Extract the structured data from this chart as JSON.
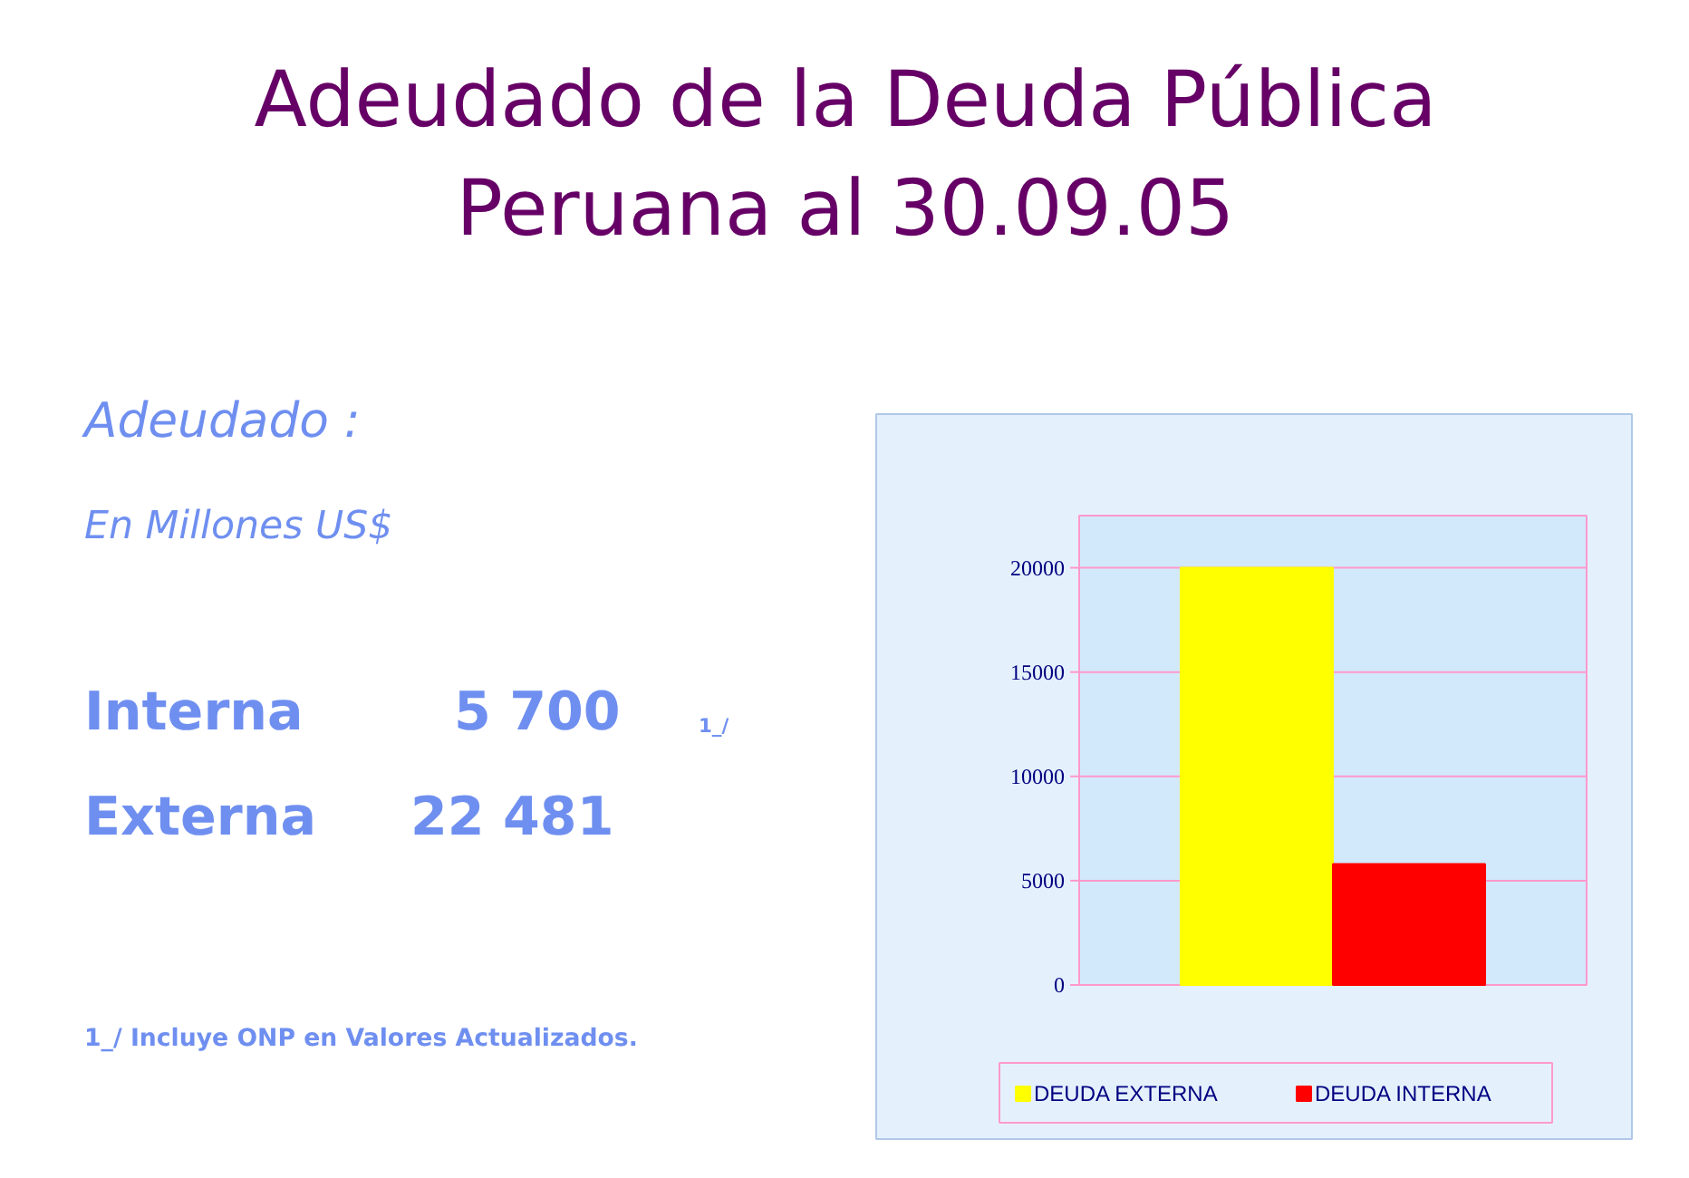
{
  "chart_data": [
    {
      "type": "other",
      "title": "Adeudado de la Deuda Pública\nPeruana al 30.09.05",
      "annotations": [
        "Adeudado :",
        "En Millones US$",
        "Interna",
        "5 700",
        "1_/",
        "Externa",
        "22 481",
        "1_/ Incluye ONP en Valores Actualizados."
      ]
    },
    {
      "type": "bar",
      "categories": [
        null
      ],
      "series": [
        {
          "name": "DEUDA EXTERNA",
          "color": "#ffff00",
          "values": [
            20000
          ]
        },
        {
          "name": "DEUDA INTERNA",
          "color": "#ff0000",
          "values": [
            5800
          ]
        }
      ],
      "ylim": [
        0,
        22500
      ],
      "yticks": [
        0,
        5000,
        10000,
        15000,
        20000
      ],
      "grid": "y",
      "legend": "bottom"
    }
  ]
}
